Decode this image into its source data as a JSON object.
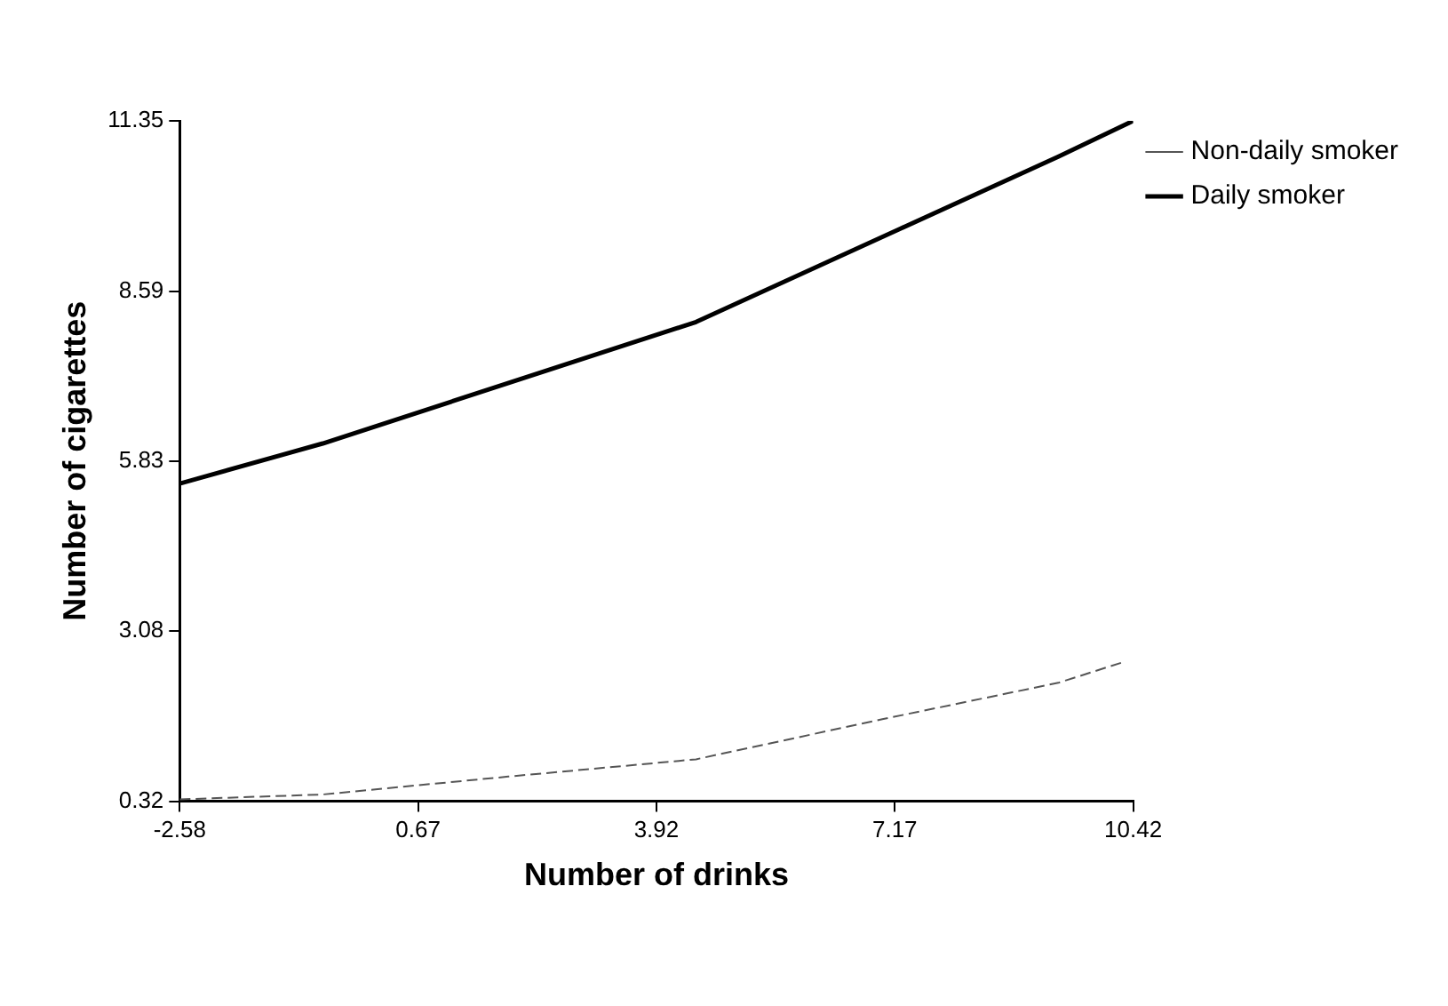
{
  "chart_data": {
    "type": "line",
    "xlabel": "Number of drinks",
    "ylabel": "Number of cigarettes",
    "xlim": [
      -2.58,
      10.42
    ],
    "xticks": [
      -2.58,
      0.67,
      3.92,
      7.17,
      10.42
    ],
    "ylim": [
      0.32,
      11.35
    ],
    "yticks": [
      0.32,
      3.08,
      5.83,
      8.59,
      11.35
    ],
    "grid": false,
    "legend": "top right",
    "marker": "none",
    "series": [
      {
        "name": "Non-daily smoker",
        "color": "#555555",
        "line_style": "dashed",
        "x": [
          -2.58,
          -0.63,
          1.9,
          4.46,
          7.0,
          9.4,
          10.27
        ],
        "values": [
          0.35,
          0.43,
          0.72,
          1.0,
          1.65,
          2.24,
          2.57
        ]
      },
      {
        "name": "Daily smoker",
        "color": "#000000",
        "line_style": "solid",
        "x": [
          -2.58,
          -0.63,
          4.46,
          9.4,
          10.42
        ],
        "values": [
          5.47,
          6.12,
          8.09,
          10.77,
          11.35
        ]
      }
    ]
  }
}
